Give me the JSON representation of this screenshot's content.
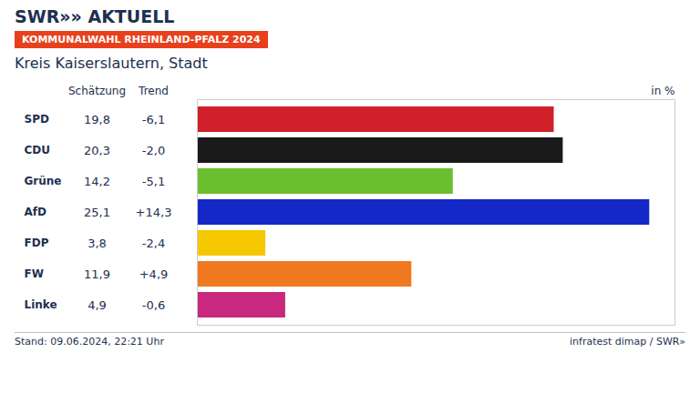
{
  "chart_data": {
    "type": "bar",
    "orientation": "horizontal",
    "header": "SWR»» AKTUELL",
    "subtitle": "KOMMUNALWAHL RHEINLAND-PFALZ 2024",
    "title": "Kreis Kaiserslautern, Stadt",
    "value_column_label": "Schätzung",
    "trend_column_label": "Trend",
    "unit_label": "in %",
    "footer_left": "Stand: 09.06.2024, 22:21 Uhr",
    "footer_right": "infratest dimap / SWR»",
    "categories": [
      "SPD",
      "CDU",
      "Grüne",
      "AfD",
      "FDP",
      "FW",
      "Linke"
    ],
    "values": [
      19.8,
      20.3,
      14.2,
      25.1,
      3.8,
      11.9,
      4.9
    ],
    "value_labels": [
      "19,8",
      "20,3",
      "14,2",
      "25,1",
      "3,8",
      "11,9",
      "4,9"
    ],
    "trends": [
      "-6,1",
      "-2,0",
      "-5,1",
      "+14,3",
      "-2,4",
      "+4,9",
      "-0,6"
    ],
    "colors": [
      "#d0202a",
      "#1a1a1a",
      "#6abf2e",
      "#1428c8",
      "#f5c800",
      "#f07820",
      "#c8287d"
    ],
    "xlim": [
      0,
      26.5
    ],
    "data_labels": true,
    "tick_labels": false,
    "grid": false
  }
}
